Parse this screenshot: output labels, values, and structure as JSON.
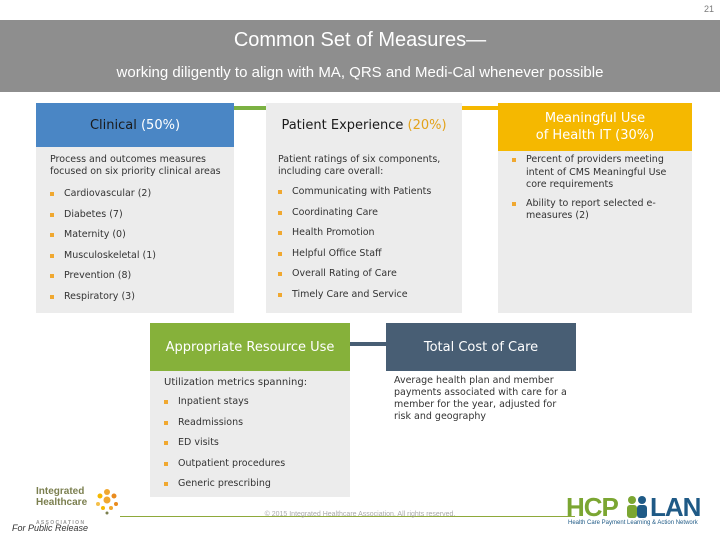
{
  "page_number": "21",
  "banner": {
    "title": "Common Set of Measures—",
    "subtitle": "working diligently to align with MA, QRS and Medi-Cal whenever possible"
  },
  "colors": {
    "banner": "#8e8e8e",
    "clinical": "#4a86c5",
    "patient_experience": "#7bb142",
    "health_it": "#f5b800",
    "resource_use": "#86b13a",
    "total_cost": "#485e74",
    "bullet": "#f0a830",
    "card_bg": "#ececec"
  },
  "clinical": {
    "title": "Clinical",
    "pct": "(50%)",
    "intro": "Process and outcomes measures focused on six priority clinical areas",
    "items": [
      "Cardiovascular (2)",
      "Diabetes (7)",
      "Maternity (0)",
      "Musculoskeletal (1)",
      "Prevention (8)",
      "Respiratory (3)"
    ]
  },
  "patient_experience": {
    "title": "Patient Experience",
    "pct": "(20%)",
    "intro": "Patient ratings of six components, including care overall:",
    "items": [
      "Communicating with Patients",
      "Coordinating Care",
      "Health Promotion",
      "Helpful Office Staff",
      "Overall Rating of Care",
      "Timely Care and Service"
    ]
  },
  "health_it": {
    "title_line1": "Meaningful Use",
    "title_line2": "of Health IT",
    "pct": "(30%)",
    "items": [
      "Percent of providers meeting intent of CMS Meaningful Use core requirements",
      "Ability to report selected e-measures (2)"
    ]
  },
  "resource_use": {
    "title": "Appropriate Resource Use",
    "intro": "Utilization metrics spanning:",
    "items": [
      "Inpatient stays",
      "Readmissions",
      "ED visits",
      "Outpatient procedures",
      "Generic prescribing"
    ]
  },
  "total_cost": {
    "title": "Total Cost of Care",
    "text": "Average health plan and member payments associated with care for a member for the year, adjusted for risk and geography"
  },
  "footer": {
    "copyright": "© 2015 Integrated Healthcare Association. All rights reserved.",
    "ihc_line1": "Integrated",
    "ihc_line2": "Healthcare",
    "ihc_line3": "A S S O C I A T I O N",
    "public": "For Public Release",
    "hcp": "HCP",
    "lan": "LAN",
    "hcp_tag": "Health Care Payment Learning & Action Network"
  }
}
